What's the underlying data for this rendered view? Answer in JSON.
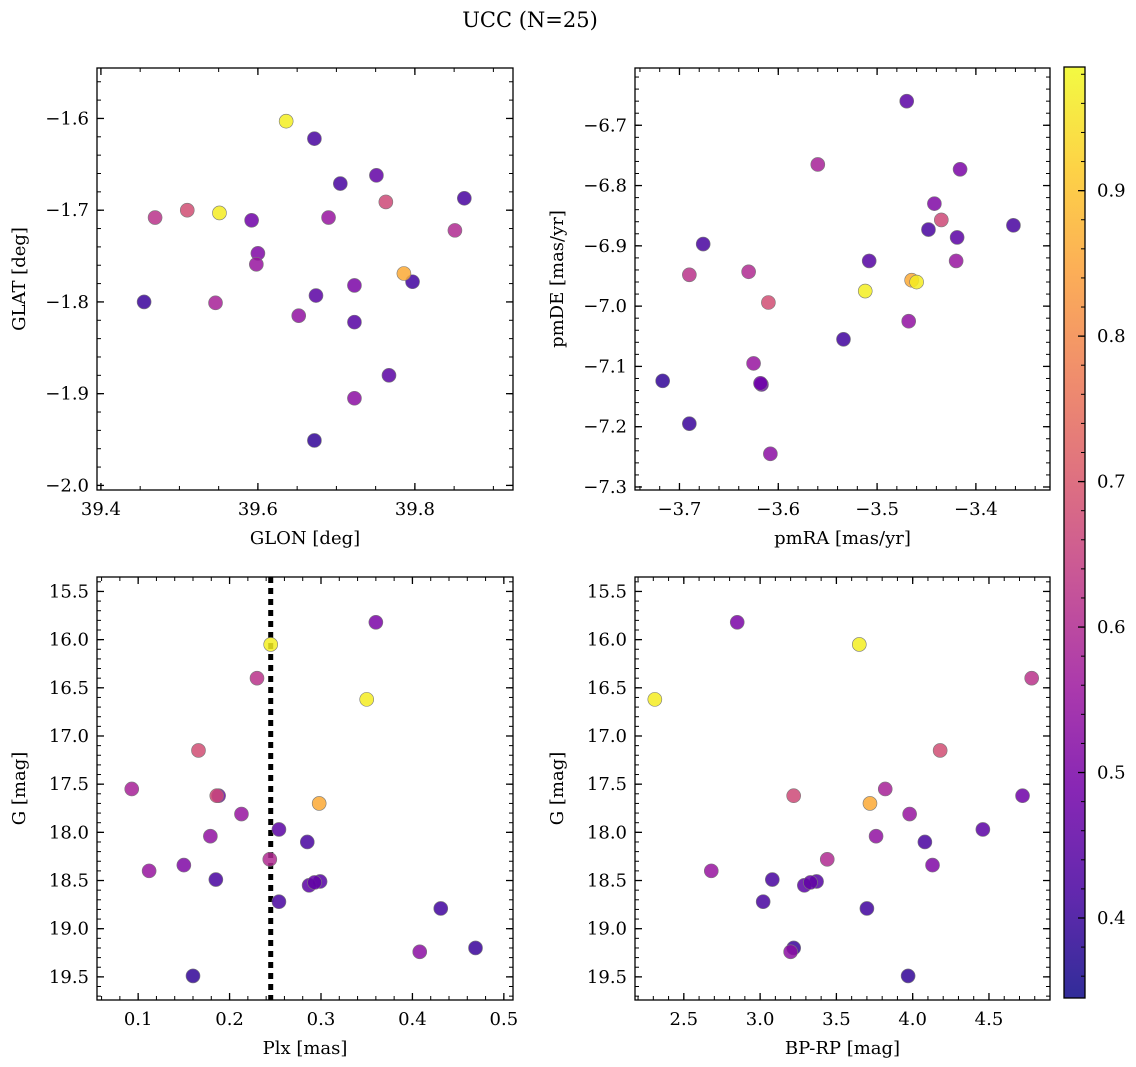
{
  "figure_title": "UCC (N=25)",
  "colors": {
    "axis": "#000000",
    "vline": "#000000",
    "colormap": [
      "#0d0887",
      "#46039f",
      "#7201a8",
      "#9c179e",
      "#bd3786",
      "#d8576b",
      "#ed7953",
      "#fb9f3a",
      "#fdca26",
      "#f0f921"
    ]
  },
  "chart_data": {
    "type": "scatter",
    "colorbar": {
      "vmin": 0.345,
      "vmax": 0.985,
      "ticks": [
        0.4,
        0.5,
        0.6,
        0.7,
        0.8,
        0.9
      ],
      "tick_labels": [
        "0.4",
        "0.5",
        "0.6",
        "0.7",
        "0.8",
        "0.9"
      ]
    },
    "stars": [
      {
        "glon": 39.636,
        "glat": -1.603,
        "pmra": -3.512,
        "pmde": -6.975,
        "plx": 0.245,
        "g": 16.05,
        "bprp": 3.65,
        "c": 0.97
      },
      {
        "glon": 39.551,
        "glat": -1.703,
        "pmra": -3.46,
        "pmde": -6.96,
        "plx": 0.35,
        "g": 16.62,
        "bprp": 2.31,
        "c": 0.965
      },
      {
        "glon": 39.786,
        "glat": -1.769,
        "pmra": -3.465,
        "pmde": -6.957,
        "plx": 0.298,
        "g": 17.7,
        "bprp": 3.72,
        "c": 0.86
      },
      {
        "glon": 39.51,
        "glat": -1.7,
        "pmra": -3.61,
        "pmde": -6.994,
        "plx": 0.166,
        "g": 17.15,
        "bprp": 4.18,
        "c": 0.68
      },
      {
        "glon": 39.763,
        "glat": -1.691,
        "pmra": -3.435,
        "pmde": -6.857,
        "plx": 0.186,
        "g": 17.62,
        "bprp": 3.22,
        "c": 0.67
      },
      {
        "glon": 39.469,
        "glat": -1.708,
        "pmra": -3.69,
        "pmde": -6.948,
        "plx": 0.23,
        "g": 16.4,
        "bprp": 4.78,
        "c": 0.62
      },
      {
        "glon": 39.546,
        "glat": -1.801,
        "pmra": -3.56,
        "pmde": -6.765,
        "plx": 0.093,
        "g": 17.55,
        "bprp": 3.82,
        "c": 0.58
      },
      {
        "glon": 39.851,
        "glat": -1.722,
        "pmra": -3.63,
        "pmde": -6.943,
        "plx": 0.244,
        "g": 18.28,
        "bprp": 3.44,
        "c": 0.6
      },
      {
        "glon": 39.598,
        "glat": -1.759,
        "pmra": -3.625,
        "pmde": -7.095,
        "plx": 0.112,
        "g": 18.4,
        "bprp": 2.68,
        "c": 0.55
      },
      {
        "glon": 39.69,
        "glat": -1.708,
        "pmra": -3.42,
        "pmde": -6.925,
        "plx": 0.213,
        "g": 17.81,
        "bprp": 3.98,
        "c": 0.55
      },
      {
        "glon": 39.652,
        "glat": -1.815,
        "pmra": -3.468,
        "pmde": -7.025,
        "plx": 0.179,
        "g": 18.04,
        "bprp": 3.76,
        "c": 0.54
      },
      {
        "glon": 39.723,
        "glat": -1.905,
        "pmra": -3.608,
        "pmde": -7.245,
        "plx": 0.408,
        "g": 19.24,
        "bprp": 3.2,
        "c": 0.53
      },
      {
        "glon": 39.6,
        "glat": -1.747,
        "pmra": -3.442,
        "pmde": -6.83,
        "plx": 0.15,
        "g": 18.34,
        "bprp": 4.13,
        "c": 0.51
      },
      {
        "glon": 39.723,
        "glat": -1.782,
        "pmra": -3.416,
        "pmde": -6.773,
        "plx": 0.36,
        "g": 15.82,
        "bprp": 2.85,
        "c": 0.5
      },
      {
        "glon": 39.592,
        "glat": -1.711,
        "pmra": -3.618,
        "pmde": -7.128,
        "plx": 0.188,
        "g": 17.62,
        "bprp": 4.72,
        "c": 0.48
      },
      {
        "glon": 39.751,
        "glat": -1.662,
        "pmra": -3.617,
        "pmde": -7.13,
        "plx": 0.293,
        "g": 18.52,
        "bprp": 3.33,
        "c": 0.46
      },
      {
        "glon": 39.674,
        "glat": -1.793,
        "pmra": -3.419,
        "pmde": -6.886,
        "plx": 0.254,
        "g": 17.97,
        "bprp": 4.46,
        "c": 0.45
      },
      {
        "glon": 39.767,
        "glat": -1.88,
        "pmra": -3.47,
        "pmde": -6.66,
        "plx": 0.287,
        "g": 18.55,
        "bprp": 3.29,
        "c": 0.45
      },
      {
        "glon": 39.723,
        "glat": -1.822,
        "pmra": -3.508,
        "pmde": -6.925,
        "plx": 0.299,
        "g": 18.51,
        "bprp": 3.37,
        "c": 0.44
      },
      {
        "glon": 39.705,
        "glat": -1.671,
        "pmra": -3.362,
        "pmde": -6.866,
        "plx": 0.285,
        "g": 18.1,
        "bprp": 4.08,
        "c": 0.42
      },
      {
        "glon": 39.672,
        "glat": -1.622,
        "pmra": -3.448,
        "pmde": -6.873,
        "plx": 0.254,
        "g": 18.72,
        "bprp": 3.02,
        "c": 0.42
      },
      {
        "glon": 39.863,
        "glat": -1.687,
        "pmra": -3.676,
        "pmde": -6.897,
        "plx": 0.185,
        "g": 18.49,
        "bprp": 3.08,
        "c": 0.42
      },
      {
        "glon": 39.797,
        "glat": -1.778,
        "pmra": -3.534,
        "pmde": -7.055,
        "plx": 0.431,
        "g": 18.79,
        "bprp": 3.7,
        "c": 0.41
      },
      {
        "glon": 39.455,
        "glat": -1.8,
        "pmra": -3.69,
        "pmde": -7.195,
        "plx": 0.469,
        "g": 19.2,
        "bprp": 3.22,
        "c": 0.4
      },
      {
        "glon": 39.672,
        "glat": -1.951,
        "pmra": -3.717,
        "pmde": -7.124,
        "plx": 0.16,
        "g": 19.49,
        "bprp": 3.97,
        "c": 0.39
      }
    ],
    "panels": [
      {
        "name": "glon-glat",
        "x_field": "glon",
        "y_field": "glat",
        "xlabel": "GLON [deg]",
        "ylabel": "GLAT [deg]",
        "xlim": [
          39.395,
          39.925
        ],
        "ylim": [
          -2.005,
          -1.545
        ],
        "y_inverted": false,
        "xticks": [
          39.4,
          39.6,
          39.8
        ],
        "xtick_labels": [
          "39.4",
          "39.6",
          "39.8"
        ],
        "yticks": [
          -2.0,
          -1.9,
          -1.8,
          -1.7,
          -1.6
        ],
        "ytick_labels": [
          "−2.0",
          "−1.9",
          "−1.8",
          "−1.7",
          "−1.6"
        ],
        "xminor": 0.05,
        "yminor": 0.02
      },
      {
        "name": "pmra-pmde",
        "x_field": "pmra",
        "y_field": "pmde",
        "xlabel": "pmRA [mas/yr]",
        "ylabel": "pmDE [mas/yr]",
        "xlim": [
          -3.745,
          -3.325
        ],
        "ylim": [
          -7.305,
          -6.605
        ],
        "y_inverted": false,
        "xticks": [
          -3.7,
          -3.6,
          -3.5,
          -3.4
        ],
        "xtick_labels": [
          "−3.7",
          "−3.6",
          "−3.5",
          "−3.4"
        ],
        "yticks": [
          -7.3,
          -7.2,
          -7.1,
          -7.0,
          -6.9,
          -6.8,
          -6.7
        ],
        "ytick_labels": [
          "−7.3",
          "−7.2",
          "−7.1",
          "−7.0",
          "−6.9",
          "−6.8",
          "−6.7"
        ],
        "xminor": 0.02,
        "yminor": 0.02
      },
      {
        "name": "plx-g",
        "x_field": "plx",
        "y_field": "g",
        "xlabel": "Plx [mas]",
        "ylabel": "G [mag]",
        "xlim": [
          0.055,
          0.51
        ],
        "ylim": [
          15.35,
          19.74
        ],
        "y_inverted": true,
        "xticks": [
          0.1,
          0.2,
          0.3,
          0.4,
          0.5
        ],
        "xtick_labels": [
          "0.1",
          "0.2",
          "0.3",
          "0.4",
          "0.5"
        ],
        "yticks": [
          15.5,
          16.0,
          16.5,
          17.0,
          17.5,
          18.0,
          18.5,
          19.0,
          19.5
        ],
        "ytick_labels": [
          "15.5",
          "16.0",
          "16.5",
          "17.0",
          "17.5",
          "18.0",
          "18.5",
          "19.0",
          "19.5"
        ],
        "xminor": 0.02,
        "yminor": 0.1,
        "vline": 0.245
      },
      {
        "name": "bprp-g",
        "x_field": "bprp",
        "y_field": "g",
        "xlabel": "BP-RP [mag]",
        "ylabel": "G [mag]",
        "xlim": [
          2.18,
          4.9
        ],
        "ylim": [
          15.35,
          19.74
        ],
        "y_inverted": true,
        "xticks": [
          2.5,
          3.0,
          3.5,
          4.0,
          4.5
        ],
        "xtick_labels": [
          "2.5",
          "3.0",
          "3.5",
          "4.0",
          "4.5"
        ],
        "yticks": [
          15.5,
          16.0,
          16.5,
          17.0,
          17.5,
          18.0,
          18.5,
          19.0,
          19.5
        ],
        "ytick_labels": [
          "15.5",
          "16.0",
          "16.5",
          "17.0",
          "17.5",
          "18.0",
          "18.5",
          "19.0",
          "19.5"
        ],
        "xminor": 0.1,
        "yminor": 0.1
      }
    ]
  }
}
